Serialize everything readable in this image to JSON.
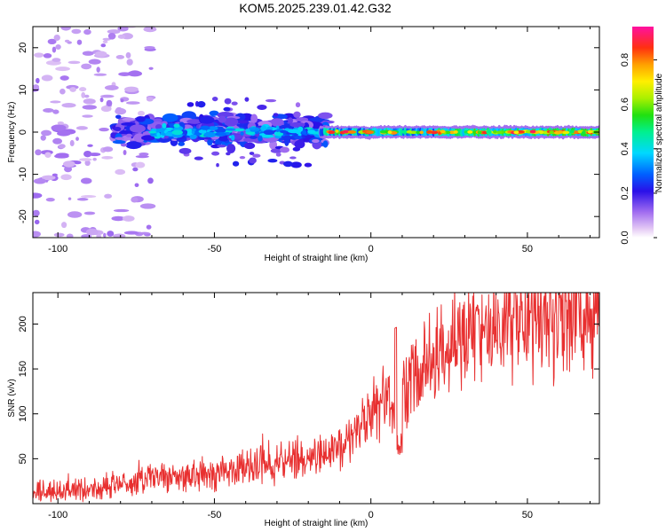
{
  "title": "KOM5.2025.239.01.42.G32",
  "chart_data": [
    {
      "type": "heatmap",
      "xlabel": "Height of straight line (km)",
      "ylabel": "Frequency (Hz)",
      "xlim": [
        -108,
        73
      ],
      "ylim": [
        -25,
        25
      ],
      "x_ticks": [
        -100,
        -50,
        0,
        50
      ],
      "y_ticks": [
        -20,
        -10,
        0,
        10,
        20
      ],
      "colorbar": {
        "label": "Normalized spectral amplitude",
        "range": [
          0,
          0.95
        ],
        "ticks": [
          0.0,
          0.2,
          0.4,
          0.6,
          0.8
        ]
      }
    },
    {
      "type": "line",
      "xlabel": "Height of straight line (km)",
      "ylabel": "SNR (v/v)",
      "xlim": [
        -108,
        73
      ],
      "ylim": [
        0,
        235
      ],
      "x_ticks": [
        -100,
        -50,
        0,
        50
      ],
      "y_ticks": [
        50,
        100,
        150,
        200
      ],
      "line_color": "#e83030",
      "trend": {
        "x": [
          -108,
          -100,
          -90,
          -80,
          -70,
          -60,
          -50,
          -40,
          -30,
          -20,
          -10,
          -5,
          0,
          5,
          10,
          15,
          20,
          25,
          30,
          40,
          50,
          60,
          73
        ],
        "y": [
          12,
          14,
          16,
          22,
          28,
          30,
          34,
          40,
          45,
          52,
          60,
          80,
          105,
          110,
          120,
          145,
          170,
          182,
          190,
          198,
          205,
          210,
          212
        ]
      }
    }
  ]
}
